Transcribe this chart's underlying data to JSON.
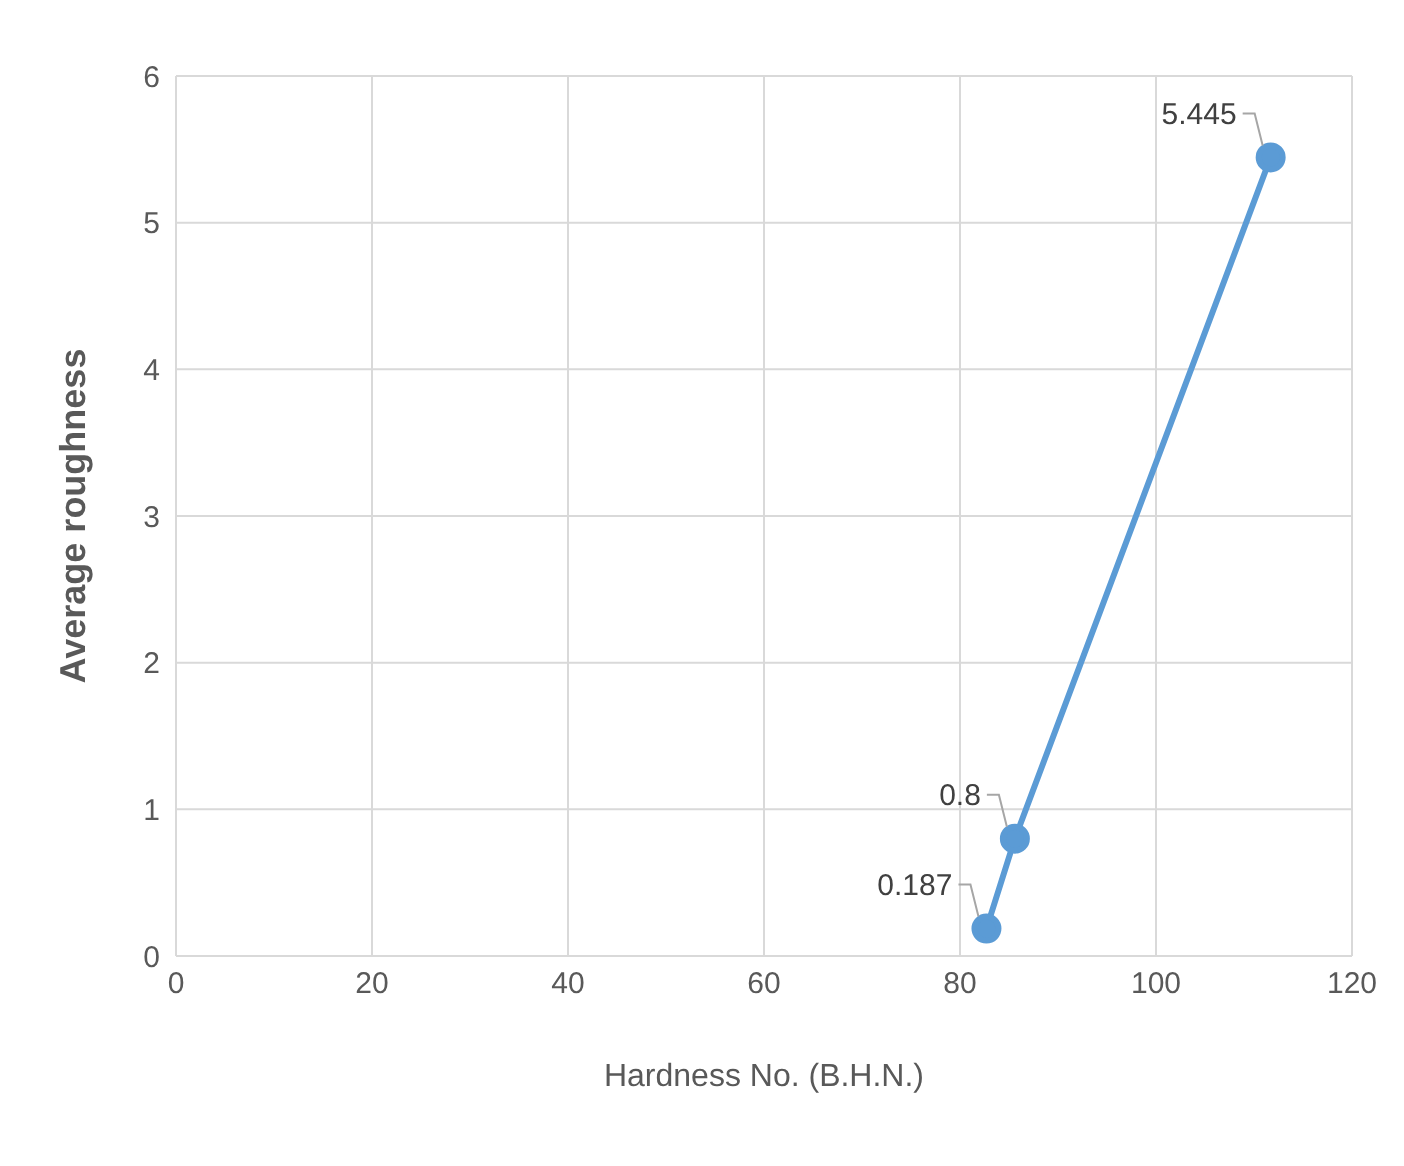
{
  "chart_data": {
    "type": "line",
    "xlabel": "Hardness No. (B.H.N.)",
    "ylabel": "Average roughness",
    "x": [
      82.7,
      85.6,
      111.7
    ],
    "series": [
      {
        "color": "#5b9bd5",
        "values": [
          0.187,
          0.8,
          5.445
        ]
      }
    ],
    "xlim": [
      0,
      120
    ],
    "xticks": [
      0,
      20,
      40,
      60,
      80,
      100,
      120
    ],
    "ylim": [
      0,
      6
    ],
    "yticks": [
      0,
      1,
      2,
      3,
      4,
      5,
      6
    ],
    "grid": true,
    "marker": "circle",
    "data_labels": true
  }
}
